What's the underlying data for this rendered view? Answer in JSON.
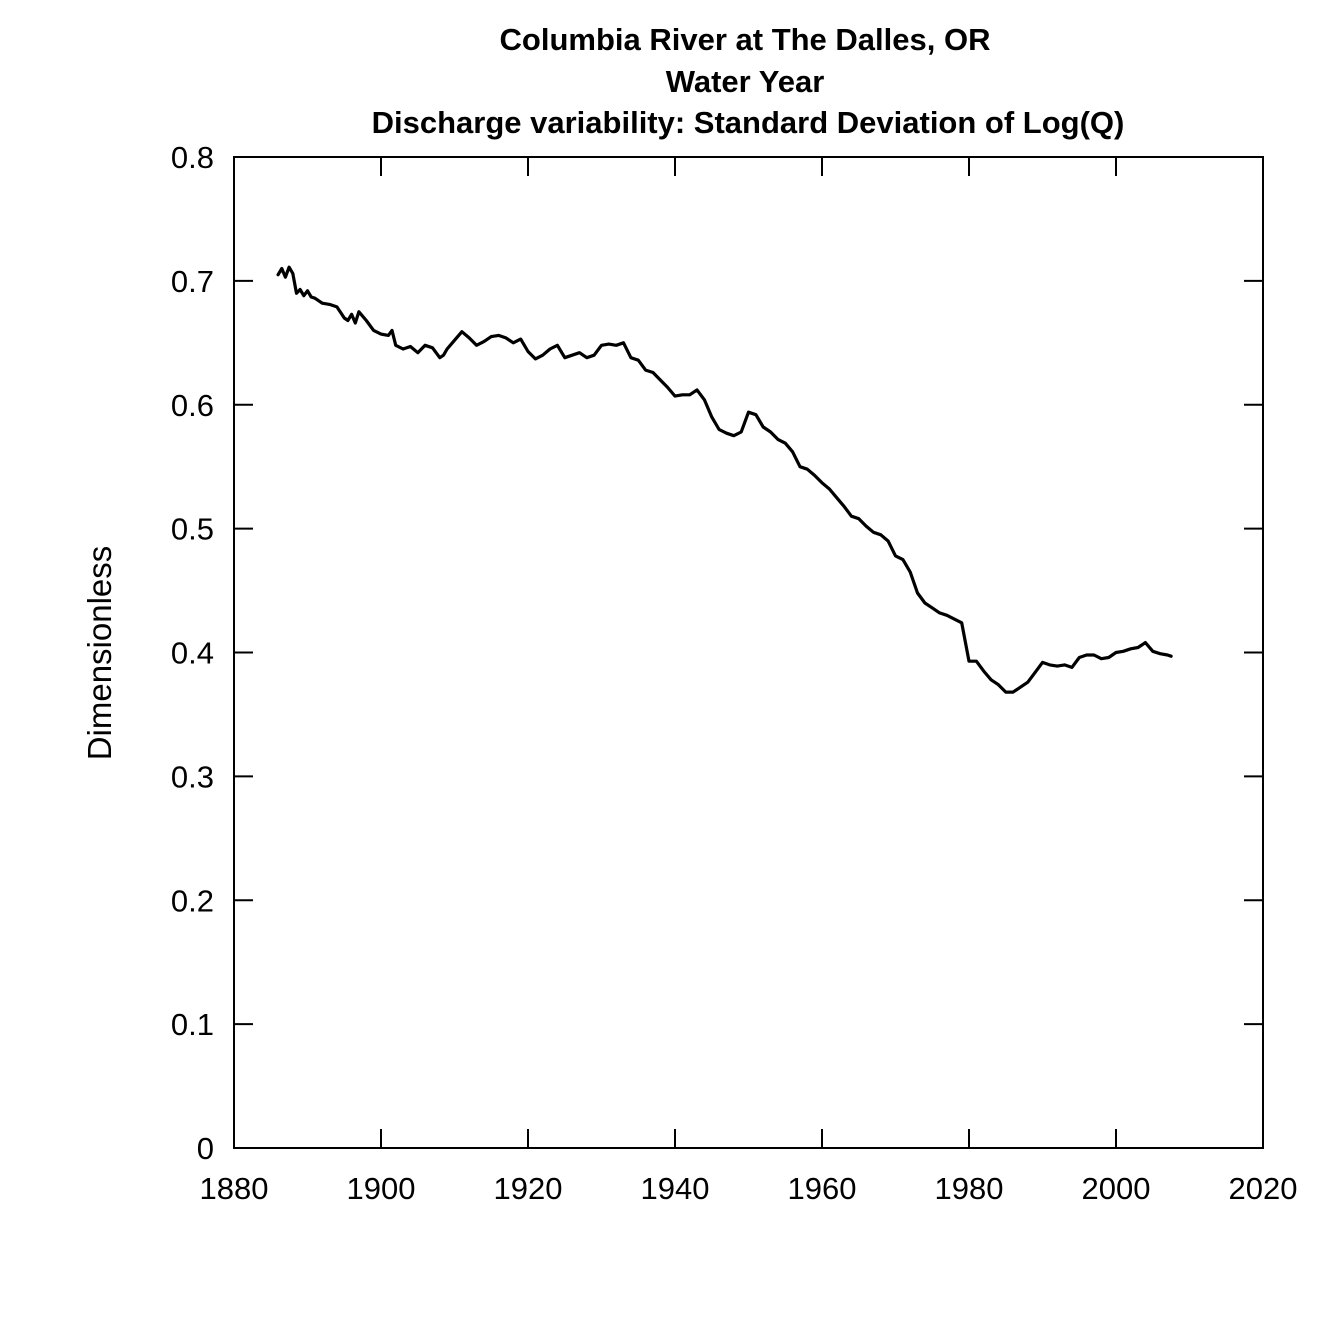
{
  "chart_data": {
    "type": "line",
    "title_lines": [
      "Columbia River at The Dalles, OR",
      "Water Year",
      "Discharge variability: Standard Deviation of Log(Q)"
    ],
    "xlabel": "",
    "ylabel": "Dimensionless",
    "xlim": [
      1880,
      2020
    ],
    "ylim": [
      0,
      0.8
    ],
    "x_ticks": [
      1880,
      1900,
      1920,
      1940,
      1960,
      1980,
      2000,
      2020
    ],
    "y_ticks": [
      0,
      0.1,
      0.2,
      0.3,
      0.4,
      0.5,
      0.6,
      0.7,
      0.8
    ],
    "x_tick_labels": [
      "1880",
      "1900",
      "1920",
      "1940",
      "1960",
      "1980",
      "2000",
      "2020"
    ],
    "y_tick_labels": [
      "0",
      "0.1",
      "0.2",
      "0.3",
      "0.4",
      "0.5",
      "0.6",
      "0.7",
      "0.8"
    ],
    "grid": false,
    "line_color": "#000000",
    "series": [
      {
        "x": [
          1886,
          1886.5,
          1887,
          1887.5,
          1888,
          1888.5,
          1889,
          1889.5,
          1890,
          1890.5,
          1891,
          1892,
          1893,
          1894,
          1895,
          1895.5,
          1896,
          1896.5,
          1897,
          1898,
          1899,
          1900,
          1901,
          1901.5,
          1902,
          1903,
          1904,
          1905,
          1906,
          1907,
          1908,
          1908.5,
          1909,
          1910,
          1911,
          1912,
          1913,
          1914,
          1915,
          1916,
          1917,
          1918,
          1919,
          1920,
          1921,
          1922,
          1923,
          1924,
          1925,
          1926,
          1927,
          1928,
          1929,
          1930,
          1931,
          1932,
          1933,
          1934,
          1935,
          1936,
          1937,
          1938,
          1939,
          1940,
          1941,
          1942,
          1943,
          1944,
          1945,
          1946,
          1947,
          1948,
          1949,
          1950,
          1951,
          1952,
          1953,
          1954,
          1955,
          1956,
          1957,
          1958,
          1959,
          1960,
          1961,
          1962,
          1963,
          1964,
          1965,
          1966,
          1967,
          1968,
          1969,
          1970,
          1971,
          1972,
          1973,
          1974,
          1975,
          1976,
          1977,
          1978,
          1979,
          1980,
          1981,
          1982,
          1983,
          1984,
          1985,
          1986,
          1987,
          1988,
          1989,
          1990,
          1991,
          1992,
          1993,
          1994,
          1995,
          1996,
          1997,
          1998,
          1999,
          2000,
          2001,
          2002,
          2003,
          2004,
          2005,
          2006,
          2007,
          2007.5
        ],
        "y": [
          0.705,
          0.71,
          0.703,
          0.711,
          0.706,
          0.69,
          0.693,
          0.688,
          0.692,
          0.687,
          0.686,
          0.682,
          0.681,
          0.679,
          0.67,
          0.668,
          0.673,
          0.666,
          0.675,
          0.668,
          0.66,
          0.657,
          0.656,
          0.66,
          0.648,
          0.645,
          0.647,
          0.642,
          0.648,
          0.646,
          0.638,
          0.64,
          0.645,
          0.652,
          0.659,
          0.654,
          0.648,
          0.651,
          0.655,
          0.656,
          0.654,
          0.65,
          0.653,
          0.643,
          0.637,
          0.64,
          0.645,
          0.648,
          0.638,
          0.64,
          0.642,
          0.638,
          0.64,
          0.648,
          0.649,
          0.648,
          0.65,
          0.638,
          0.636,
          0.628,
          0.626,
          0.62,
          0.614,
          0.607,
          0.608,
          0.608,
          0.612,
          0.604,
          0.59,
          0.58,
          0.577,
          0.575,
          0.578,
          0.594,
          0.592,
          0.582,
          0.578,
          0.572,
          0.569,
          0.562,
          0.55,
          0.548,
          0.543,
          0.537,
          0.532,
          0.525,
          0.518,
          0.51,
          0.508,
          0.502,
          0.497,
          0.495,
          0.49,
          0.478,
          0.475,
          0.465,
          0.448,
          0.44,
          0.436,
          0.432,
          0.43,
          0.427,
          0.424,
          0.393,
          0.393,
          0.385,
          0.378,
          0.374,
          0.368,
          0.368,
          0.372,
          0.376,
          0.384,
          0.392,
          0.39,
          0.389,
          0.39,
          0.388,
          0.396,
          0.398,
          0.398,
          0.395,
          0.396,
          0.4,
          0.401,
          0.403,
          0.404,
          0.408,
          0.401,
          0.399,
          0.398,
          0.397
        ]
      }
    ]
  }
}
